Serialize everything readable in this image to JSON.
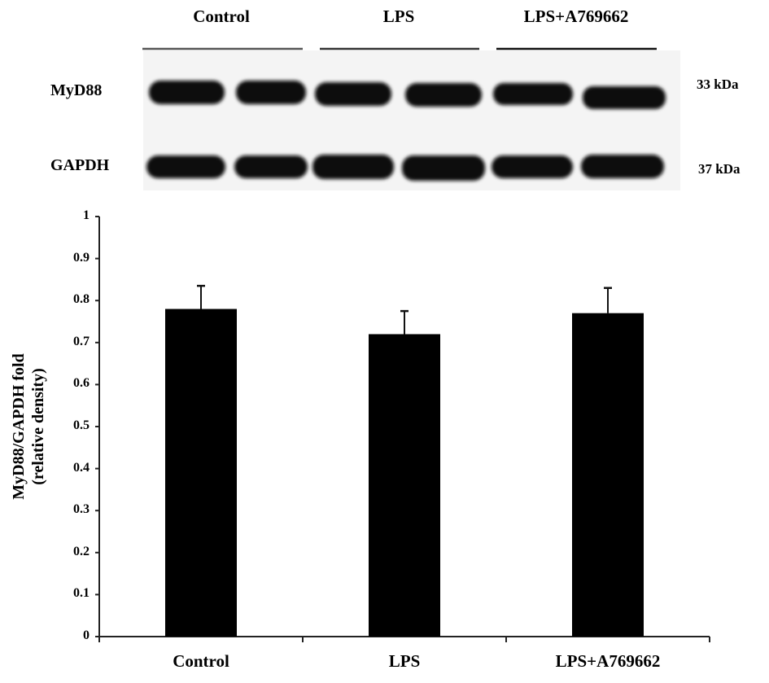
{
  "blot": {
    "groups": [
      "Control",
      "LPS",
      "LPS+A769662"
    ],
    "rows": [
      {
        "protein": "MyD88",
        "size": "33 kDa"
      },
      {
        "protein": "GAPDH",
        "size": "37 kDa"
      }
    ]
  },
  "chart_data": {
    "type": "bar",
    "categories": [
      "Control",
      "LPS",
      "LPS+A769662"
    ],
    "values": [
      0.78,
      0.72,
      0.77
    ],
    "errors": [
      0.055,
      0.055,
      0.06
    ],
    "ylabel_lines": [
      "MyD88/GAPDH fold",
      "(relative density)"
    ],
    "xlabel": "",
    "ylim": [
      0,
      1
    ],
    "yticks": [
      "0",
      "0.1",
      "0.2",
      "0.3",
      "0.4",
      "0.5",
      "0.6",
      "0.7",
      "0.8",
      "0.9",
      "1"
    ],
    "bar_color": "#000000",
    "grid": false
  }
}
